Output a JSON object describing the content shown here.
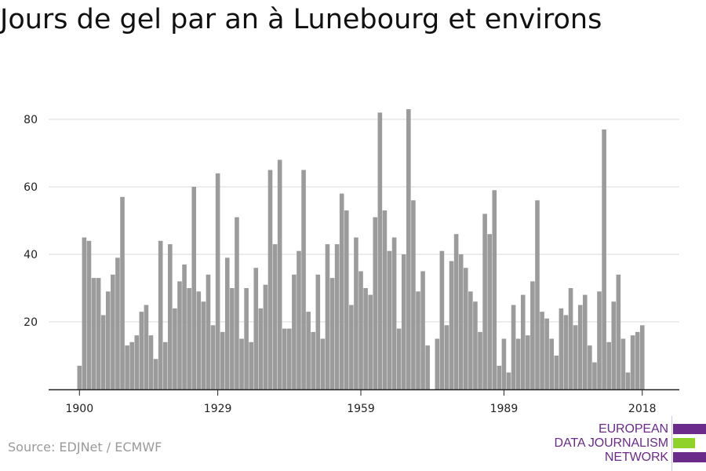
{
  "title": "Jours de gel par an à Lunebourg et environs",
  "source": "Source: EDJNet / ECMWF",
  "logo": {
    "lines": [
      "EUROPEAN",
      "DATA JOURNALISM",
      "NETWORK"
    ],
    "colors": {
      "purple": "#6a2b8a",
      "green": "#8fd22a"
    }
  },
  "colors": {
    "bar": "#9b9b9b",
    "grid": "#d9d9d9",
    "axis": "#222222"
  },
  "chart_data": {
    "type": "bar",
    "title": "Jours de gel par an à Lunebourg et environs",
    "xlabel": "",
    "ylabel": "",
    "x": [
      1900,
      1901,
      1902,
      1903,
      1904,
      1905,
      1906,
      1907,
      1908,
      1909,
      1910,
      1911,
      1912,
      1913,
      1914,
      1915,
      1916,
      1917,
      1918,
      1919,
      1920,
      1921,
      1922,
      1923,
      1924,
      1925,
      1926,
      1927,
      1928,
      1929,
      1930,
      1931,
      1932,
      1933,
      1934,
      1935,
      1936,
      1937,
      1938,
      1939,
      1940,
      1941,
      1942,
      1943,
      1944,
      1945,
      1946,
      1947,
      1948,
      1949,
      1950,
      1951,
      1952,
      1953,
      1954,
      1955,
      1956,
      1957,
      1958,
      1959,
      1960,
      1961,
      1962,
      1963,
      1964,
      1965,
      1966,
      1967,
      1968,
      1969,
      1970,
      1971,
      1972,
      1973,
      1974,
      1975,
      1976,
      1977,
      1978,
      1979,
      1980,
      1981,
      1982,
      1983,
      1984,
      1985,
      1986,
      1987,
      1988,
      1989,
      1990,
      1991,
      1992,
      1993,
      1994,
      1995,
      1996,
      1997,
      1998,
      1999,
      2000,
      2001,
      2002,
      2003,
      2004,
      2005,
      2006,
      2007,
      2008,
      2009,
      2010,
      2011,
      2012,
      2013,
      2014,
      2015,
      2016,
      2017,
      2018
    ],
    "values": [
      7,
      45,
      44,
      33,
      33,
      22,
      29,
      34,
      39,
      57,
      13,
      14,
      16,
      23,
      25,
      16,
      9,
      44,
      14,
      43,
      24,
      32,
      37,
      30,
      60,
      29,
      26,
      34,
      19,
      64,
      17,
      39,
      30,
      51,
      15,
      30,
      14,
      36,
      24,
      31,
      65,
      43,
      68,
      18,
      18,
      34,
      41,
      65,
      23,
      17,
      34,
      15,
      43,
      33,
      43,
      58,
      53,
      25,
      45,
      35,
      30,
      28,
      51,
      82,
      53,
      41,
      45,
      18,
      40,
      83,
      56,
      29,
      35,
      13,
      0,
      15,
      41,
      19,
      38,
      46,
      40,
      36,
      29,
      26,
      17,
      52,
      46,
      59,
      7,
      15,
      5,
      25,
      15,
      28,
      16,
      32,
      56,
      23,
      21,
      15,
      10,
      24,
      22,
      30,
      19,
      25,
      28,
      13,
      8,
      29,
      77,
      14,
      26,
      34,
      15,
      5,
      16,
      17,
      19
    ],
    "xticks": [
      1900,
      1929,
      1959,
      1989,
      2018
    ],
    "yticks": [
      20,
      40,
      60,
      80
    ],
    "ylim": [
      0,
      88
    ],
    "grid": true
  }
}
